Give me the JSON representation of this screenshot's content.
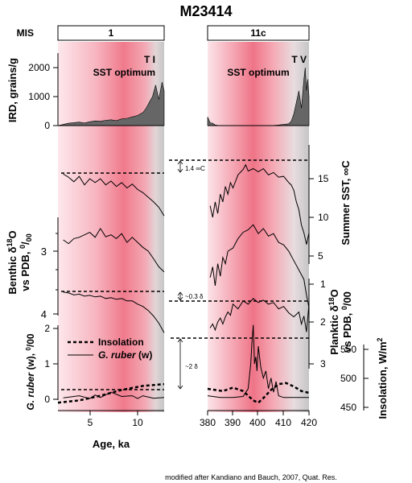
{
  "title": "M23414",
  "mis_label": "MIS",
  "stages": [
    "1",
    "11c"
  ],
  "terminations": [
    "T I",
    "T V"
  ],
  "sst_optimum": "SST optimum",
  "axes": {
    "ird": {
      "label": "IRD, grains/g",
      "ticks": [
        "0",
        "1000",
        "2000"
      ]
    },
    "benthic": {
      "label_1": "Benthic δ",
      "sup1": "18",
      "label_2": "O",
      "label_3": "vs PDB, ",
      "sup2": "0",
      "sub2": "/",
      "sup3": "00",
      "ticks": [
        "3",
        "4"
      ]
    },
    "ruber_left": {
      "label_1": "G. ruber",
      "label_2": " (w), ",
      "sup": "0",
      "sub": "/00",
      "ticks": [
        "2",
        "1",
        "0"
      ]
    },
    "sst": {
      "label": "Summer SST, ∞C",
      "ticks": [
        "5",
        "10",
        "15"
      ]
    },
    "planktic": {
      "label_1": "Planktic δ",
      "sup1": "18",
      "label_2": "O",
      "label_3": "vs PDB, ",
      "sup2": "0",
      "sub2": "/00",
      "ticks": [
        "1",
        "2",
        "3"
      ]
    },
    "insolation": {
      "label": "Insolation, W/m",
      "sup": "2",
      "ticks": [
        "450",
        "500",
        "550"
      ]
    },
    "age": {
      "label": "Age, ka",
      "ticks_left": [
        "5",
        "10"
      ],
      "ticks_right": [
        "380",
        "390",
        "400",
        "410",
        "420"
      ]
    }
  },
  "annotations": {
    "sst_diff": "1.4 ∞C",
    "benthic_diff": "~0.3 δ",
    "ruber_diff": "~2 δ"
  },
  "legend": {
    "insolation": "Insolation",
    "ruber": "G. ruber",
    "ruber_suffix": " (w)"
  },
  "credit": "modified after Kandiano and Bauch, 2007, Quat. Res.",
  "colors": {
    "band_pink": "#f07a8c",
    "band_grey": "#c8c8c8",
    "ird_fill": "#666666"
  },
  "chart_data": [
    {
      "type": "area",
      "panel": "MIS 1 (left)",
      "xlabel": "Age, ka",
      "xlim": [
        2,
        12
      ],
      "series": [
        {
          "name": "IRD",
          "unit": "grains/g",
          "x": [
            2,
            2.5,
            3,
            3.5,
            4,
            4.5,
            5,
            5.5,
            6,
            6.5,
            7,
            7.5,
            8,
            8.5,
            9,
            9.5,
            10,
            10.3,
            10.6,
            10.9,
            11.2,
            11.5,
            11.8,
            12
          ],
          "y": [
            0,
            40,
            80,
            100,
            120,
            90,
            130,
            160,
            150,
            180,
            200,
            170,
            230,
            250,
            300,
            350,
            450,
            600,
            800,
            1000,
            1400,
            900,
            1500,
            1200
          ]
        },
        {
          "name": "Summer SST",
          "unit": "°C",
          "x": [
            2.5,
            3,
            3.5,
            4,
            4.5,
            5,
            5.5,
            6,
            6.5,
            7,
            7.5,
            8,
            8.5,
            9,
            9.5,
            10,
            10.5,
            11,
            11.5,
            12
          ],
          "y": [
            15.6,
            15.2,
            14.6,
            15.3,
            14.2,
            15.0,
            14.5,
            15.0,
            14.2,
            14.7,
            14.0,
            14.5,
            13.8,
            14.3,
            13.6,
            13.2,
            12.6,
            12.0,
            11.3,
            10.2
          ]
        },
        {
          "name": "Benthic d18O",
          "unit": "permil vs PDB",
          "x": [
            2.5,
            3,
            3.5,
            4,
            4.5,
            5,
            5.5,
            6,
            6.5,
            7,
            7.5,
            8,
            8.5,
            9,
            9.5,
            10,
            10.5,
            11,
            11.5,
            12
          ],
          "y": [
            2.82,
            2.88,
            2.8,
            2.78,
            2.74,
            2.7,
            2.78,
            2.64,
            2.77,
            2.74,
            2.8,
            2.72,
            2.86,
            2.78,
            2.86,
            2.94,
            3.0,
            3.12,
            3.25,
            3.33
          ]
        },
        {
          "name": "Planktic d18O",
          "unit": "permil vs PDB",
          "x": [
            2.5,
            3,
            3.5,
            4,
            4.5,
            5,
            5.5,
            6,
            6.5,
            7,
            7.5,
            8,
            8.5,
            9,
            9.5,
            10,
            10.5,
            11,
            11.5,
            12
          ],
          "y": [
            1.2,
            1.22,
            1.27,
            1.25,
            1.3,
            1.28,
            1.32,
            1.3,
            1.36,
            1.34,
            1.38,
            1.36,
            1.42,
            1.42,
            1.5,
            1.56,
            1.66,
            1.8,
            1.98,
            2.22
          ]
        },
        {
          "name": "G. ruber (w)",
          "unit": "permil",
          "x": [
            2.5,
            3,
            4,
            5,
            5.5,
            6,
            7,
            8,
            9,
            9.5,
            10,
            11,
            12
          ],
          "y": [
            0.04,
            0.06,
            0.1,
            0.02,
            0.12,
            0.05,
            0.2,
            0.08,
            0.1,
            0.02,
            0.1,
            0.03,
            0.05
          ]
        },
        {
          "name": "Insolation",
          "unit": "W/m2",
          "x": [
            2,
            4,
            6,
            8,
            10,
            12
          ],
          "y": [
            458,
            462,
            470,
            480,
            487,
            490
          ]
        }
      ]
    },
    {
      "type": "area",
      "panel": "MIS 11c (right)",
      "xlabel": "Age, ka",
      "xlim": [
        380,
        420
      ],
      "series": [
        {
          "name": "IRD",
          "unit": "grains/g",
          "x": [
            380,
            381,
            382,
            383,
            385,
            390,
            395,
            400,
            405,
            408,
            410,
            412,
            413,
            414,
            415,
            416,
            417,
            418,
            418.5,
            419,
            419.5,
            420
          ],
          "y": [
            300,
            100,
            80,
            20,
            0,
            0,
            0,
            0,
            0,
            20,
            40,
            60,
            150,
            400,
            800,
            1200,
            600,
            1600,
            2000,
            1200,
            1600,
            1000
          ]
        },
        {
          "name": "Summer SST",
          "unit": "°C",
          "x": [
            381,
            382,
            383,
            384,
            385,
            386,
            387,
            388,
            389,
            390,
            392,
            394,
            395,
            396,
            398,
            400,
            402,
            404,
            406,
            408,
            410,
            412,
            413,
            414,
            415,
            416,
            417,
            418,
            419,
            420
          ],
          "y": [
            11.5,
            10.0,
            12.0,
            10.5,
            13.0,
            12.0,
            14.0,
            13.0,
            14.5,
            13.8,
            15.5,
            16.2,
            16.8,
            16.0,
            16.3,
            15.9,
            16.3,
            15.5,
            15.8,
            15.2,
            15.3,
            14.5,
            14.2,
            13.5,
            12.0,
            11.0,
            9.0,
            8.0,
            6.5,
            8.0
          ]
        },
        {
          "name": "Benthic d18O",
          "unit": "permil vs PDB",
          "x": [
            381,
            382,
            383,
            384,
            385,
            386,
            387,
            388,
            390,
            392,
            394,
            396,
            398,
            400,
            402,
            404,
            406,
            408,
            410,
            412,
            414,
            416,
            418,
            419,
            420
          ],
          "y": [
            3.42,
            3.25,
            3.55,
            3.2,
            3.4,
            3.1,
            3.2,
            3.0,
            2.95,
            2.8,
            2.7,
            2.66,
            2.58,
            2.72,
            2.64,
            2.76,
            2.72,
            2.86,
            2.9,
            3.0,
            3.15,
            3.3,
            3.45,
            3.7,
            3.9
          ]
        },
        {
          "name": "Planktic d18O",
          "unit": "permil vs PDB",
          "x": [
            381,
            382,
            383,
            384,
            385,
            386,
            387,
            388,
            389,
            390,
            392,
            394,
            396,
            398,
            400,
            402,
            404,
            406,
            408,
            410,
            412,
            414,
            416,
            417,
            418,
            419,
            420
          ],
          "y": [
            2.1,
            2.0,
            2.15,
            1.95,
            1.85,
            2.0,
            1.82,
            1.7,
            1.78,
            1.5,
            1.62,
            1.42,
            1.5,
            1.36,
            1.46,
            1.4,
            1.5,
            1.46,
            1.62,
            1.56,
            1.72,
            1.82,
            1.7,
            2.0,
            1.8,
            2.2,
            1.5
          ]
        },
        {
          "name": "G. ruber (w)",
          "unit": "permil",
          "x": [
            380,
            385,
            390,
            394,
            396,
            397,
            397.5,
            398,
            398.5,
            399,
            399.5,
            400,
            401,
            402,
            403,
            404,
            405,
            406,
            407,
            408,
            410,
            412,
            416,
            420
          ],
          "y": [
            0.1,
            0.05,
            0.05,
            0.08,
            0.3,
            1.0,
            1.6,
            2.1,
            1.0,
            1.2,
            0.8,
            1.5,
            0.9,
            0.6,
            0.8,
            0.3,
            0.6,
            0.2,
            0.5,
            0.1,
            0.05,
            0.05,
            0.05,
            0.05
          ]
        },
        {
          "name": "Insolation",
          "unit": "W/m2",
          "x": [
            380,
            383,
            386,
            390,
            394,
            398,
            400,
            402,
            405,
            408,
            411,
            414,
            417,
            420
          ],
          "y": [
            482,
            480,
            478,
            484,
            478,
            462,
            458,
            466,
            480,
            490,
            492,
            486,
            478,
            475
          ]
        }
      ]
    }
  ]
}
